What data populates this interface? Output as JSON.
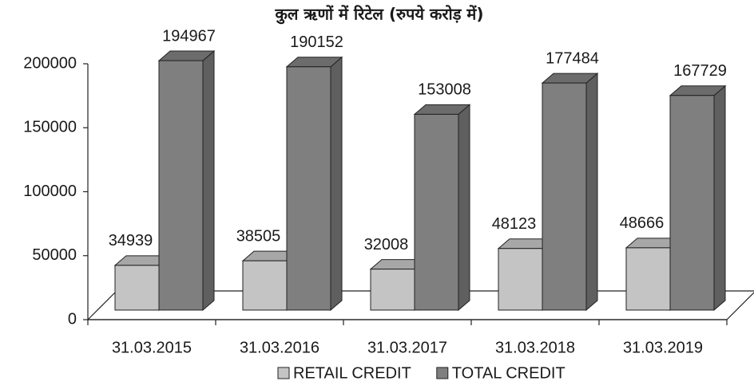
{
  "chart_data": {
    "type": "bar3d",
    "title": "कुल ऋणों में रिटेल (रुपये करोड़ में)",
    "categories": [
      "31.03.2015",
      "31.03.2016",
      "31.03.2017",
      "31.03.2018",
      "31.03.2019"
    ],
    "series": [
      {
        "name": "RETAIL CREDIT",
        "color": "#c4c4c4",
        "values": [
          34939,
          38505,
          32008,
          48123,
          48666
        ]
      },
      {
        "name": "TOTAL CREDIT",
        "color": "#7f7f7f",
        "values": [
          194967,
          190152,
          153008,
          177484,
          167729
        ]
      }
    ],
    "ylim": [
      0,
      200000
    ],
    "yticks": [
      0,
      50000,
      100000,
      150000,
      200000
    ],
    "grid": false
  }
}
